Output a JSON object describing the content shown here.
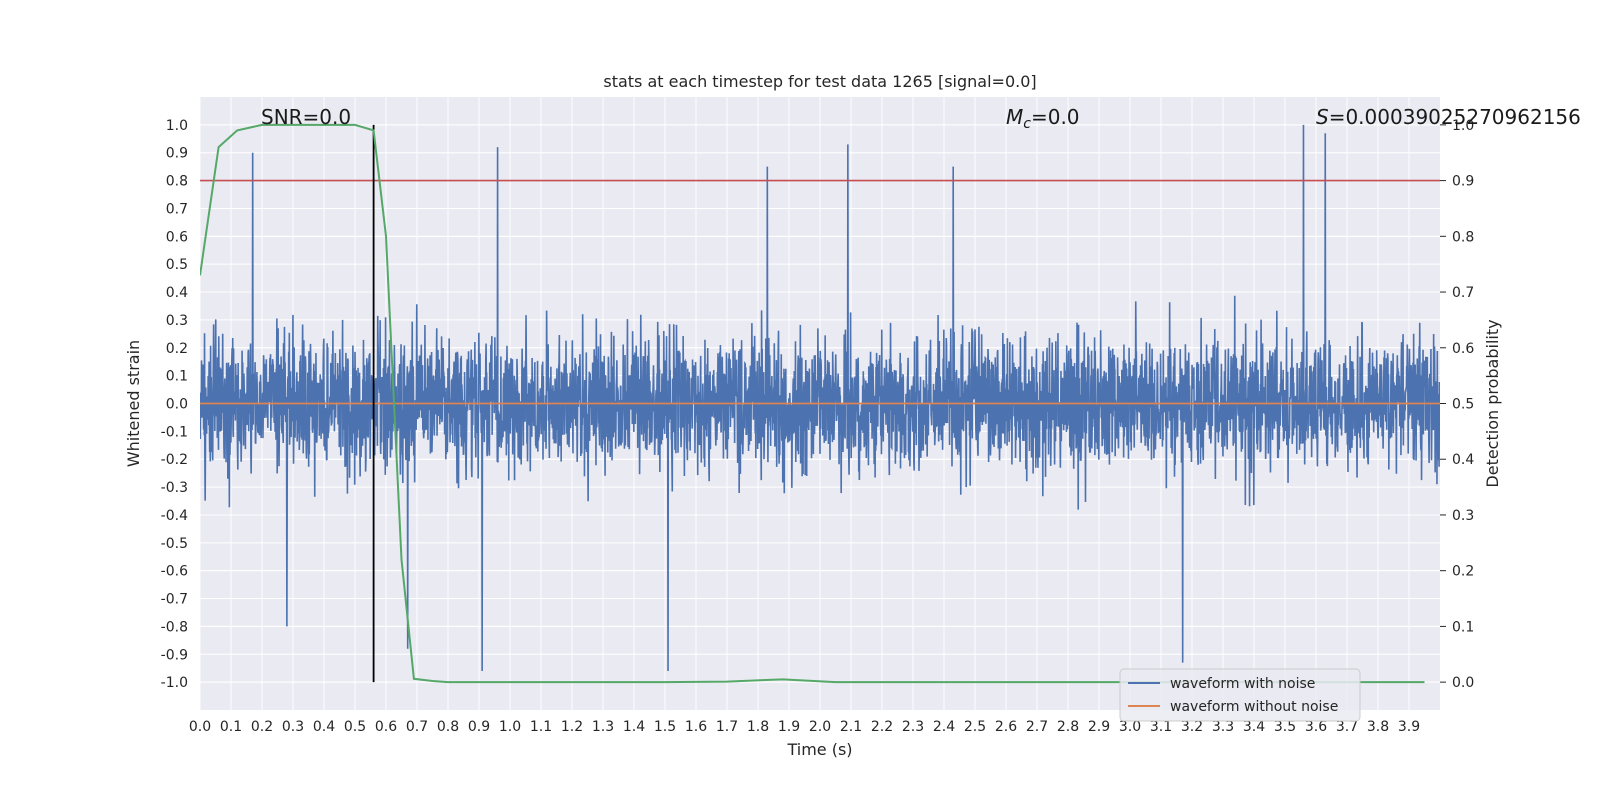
{
  "chart_data": {
    "type": "line",
    "title": "stats at each timestep for test data 1265 [signal=0.0]",
    "xlabel": "Time (s)",
    "ylabel_left": "Whitened strain",
    "ylabel_right": "Detection probability",
    "xlim": [
      0.0,
      4.0
    ],
    "ylim_left": [
      -1.1,
      1.1
    ],
    "ylim_right": [
      -0.05,
      1.05
    ],
    "x_ticks": [
      "0.0",
      "0.1",
      "0.2",
      "0.3",
      "0.4",
      "0.5",
      "0.6",
      "0.7",
      "0.8",
      "0.9",
      "1.0",
      "1.1",
      "1.2",
      "1.3",
      "1.4",
      "1.5",
      "1.6",
      "1.7",
      "1.8",
      "1.9",
      "2.0",
      "2.1",
      "2.2",
      "2.3",
      "2.4",
      "2.5",
      "2.6",
      "2.7",
      "2.8",
      "2.9",
      "3.0",
      "3.1",
      "3.2",
      "3.3",
      "3.4",
      "3.5",
      "3.6",
      "3.7",
      "3.8",
      "3.9"
    ],
    "y_ticks_left": [
      "1.0",
      "0.9",
      "0.8",
      "0.7",
      "0.6",
      "0.5",
      "0.4",
      "0.3",
      "0.2",
      "0.1",
      "0.0",
      "-0.1",
      "-0.2",
      "-0.3",
      "-0.4",
      "-0.5",
      "-0.6",
      "-0.7",
      "-0.8",
      "-0.9",
      "-1.0"
    ],
    "y_ticks_right": [
      "1.0",
      "0.9",
      "0.8",
      "0.7",
      "0.6",
      "0.5",
      "0.4",
      "0.3",
      "0.2",
      "0.1",
      "0.0"
    ],
    "grid": true,
    "legend_position": "bottom-right",
    "annotations": {
      "snr": "SNR=0.0",
      "mc_prefix": "M",
      "mc_sub": "c",
      "mc_suffix": "=0.0",
      "s_prefix": "S",
      "s_suffix": "=0.00039025270962156"
    },
    "threshold_right": 0.9,
    "detection_time": 0.56,
    "series": [
      {
        "name": "waveform with noise",
        "color": "#4c72b0",
        "kind": "noise",
        "amplitude_typical": 0.45,
        "amplitude_max": 1.0,
        "seed": 1265,
        "peaks": [
          {
            "x": 0.17,
            "y": 0.9
          },
          {
            "x": 0.96,
            "y": 0.92
          },
          {
            "x": 1.51,
            "y": -0.96
          },
          {
            "x": 1.83,
            "y": 0.85
          },
          {
            "x": 2.09,
            "y": 0.93
          },
          {
            "x": 2.43,
            "y": 0.85
          },
          {
            "x": 3.56,
            "y": 1.0
          },
          {
            "x": 3.63,
            "y": 0.97
          },
          {
            "x": 0.91,
            "y": -0.96
          },
          {
            "x": 3.17,
            "y": -0.93
          },
          {
            "x": 0.28,
            "y": -0.8
          },
          {
            "x": 0.67,
            "y": -0.88
          }
        ]
      },
      {
        "name": "waveform without noise",
        "color": "#dd8452",
        "kind": "flat",
        "value": 0.0
      },
      {
        "name": "detection probability",
        "color": "#55a868",
        "kind": "line",
        "axis": "right",
        "x": [
          0.0,
          0.06,
          0.12,
          0.2,
          0.3,
          0.4,
          0.5,
          0.56,
          0.6,
          0.65,
          0.69,
          0.75,
          0.8,
          1.0,
          1.5,
          1.7,
          1.88,
          2.05,
          2.5,
          3.0,
          3.5,
          3.95
        ],
        "y": [
          0.73,
          0.96,
          0.99,
          1.0,
          1.0,
          1.0,
          1.0,
          0.99,
          0.8,
          0.22,
          0.006,
          0.002,
          0.0,
          0.0,
          0.0,
          0.001,
          0.005,
          0.0,
          0.0,
          0.0,
          0.0,
          0.0
        ]
      }
    ],
    "colors": {
      "plot_bg": "#eaeaf2",
      "grid": "#ffffff",
      "threshold": "#c44e52",
      "detection_marker": "#000000"
    }
  }
}
